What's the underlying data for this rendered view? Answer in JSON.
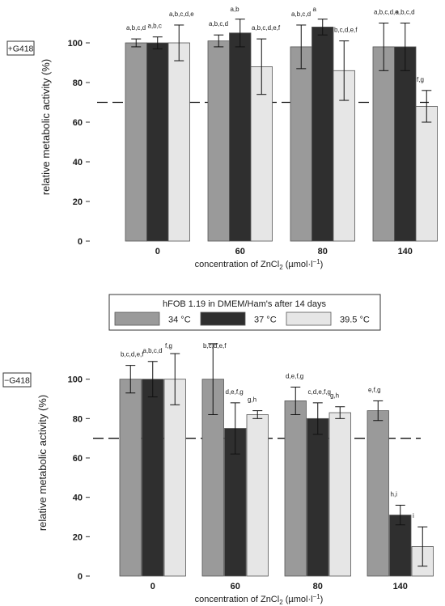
{
  "chart_data": [
    {
      "type": "bar",
      "panel_label": "+G418",
      "categories": [
        "0",
        "60",
        "80",
        "140"
      ],
      "ylabel": "relative metabolic activity (%)",
      "xlabel_parts": [
        "concentration of ZnCl",
        "2",
        " (µmol·l",
        "−1",
        ")"
      ],
      "ylim": [
        0,
        120
      ],
      "yticks": [
        0,
        20,
        40,
        60,
        80,
        100
      ],
      "reference_line": 70,
      "series": [
        {
          "name": "34 °C",
          "color": "#9a9a9a",
          "values": [
            100,
            101,
            98,
            98
          ],
          "errors": [
            2,
            3,
            11,
            12
          ],
          "labels": [
            "a,b,c,d",
            "a,b,c,d",
            "a,b,c,d",
            "a,b,c,d,e"
          ]
        },
        {
          "name": "37 °C",
          "color": "#2f2f2f",
          "values": [
            100,
            105,
            108,
            98
          ],
          "errors": [
            3,
            7,
            4,
            12
          ],
          "labels": [
            "a,b,c",
            "a,b",
            "a",
            "a,b,c,d"
          ]
        },
        {
          "name": "39.5 °C",
          "color": "#e6e6e6",
          "values": [
            100,
            88,
            86,
            68
          ],
          "errors": [
            9,
            14,
            15,
            8
          ],
          "labels": [
            "a,b,c,d,e",
            "a,b,c,d,e,f",
            "b,c,d,e,f",
            "f,g"
          ]
        }
      ]
    },
    {
      "type": "bar",
      "panel_label": "−G418",
      "categories": [
        "0",
        "60",
        "80",
        "140"
      ],
      "ylabel": "relative metabolic activity (%)",
      "xlabel_parts": [
        "concentration of ZnCl",
        "2",
        " (µmol·l",
        "−1",
        ")"
      ],
      "ylim": [
        0,
        120
      ],
      "yticks": [
        0,
        20,
        40,
        60,
        80,
        100
      ],
      "reference_line": 70,
      "series": [
        {
          "name": "34 °C",
          "color": "#9a9a9a",
          "values": [
            100,
            100,
            89,
            84
          ],
          "errors": [
            7,
            18,
            7,
            5
          ],
          "labels": [
            "b,c,d,e,f",
            "b,c,d,e,f",
            "d,e,f,g",
            "e,f,g"
          ]
        },
        {
          "name": "37 °C",
          "color": "#2f2f2f",
          "values": [
            100,
            75,
            80,
            31
          ],
          "errors": [
            9,
            13,
            8,
            5
          ],
          "labels": [
            "a,b,c,d",
            "d,e,f,g",
            "c,d,e,f,g",
            "h,i"
          ]
        },
        {
          "name": "39.5 °C",
          "color": "#e6e6e6",
          "values": [
            100,
            82,
            83,
            15
          ],
          "errors": [
            13,
            2,
            3,
            10
          ],
          "labels": [
            "f,g",
            "g,h",
            "g,h",
            "i"
          ]
        }
      ]
    }
  ],
  "legend": {
    "title": "hFOB 1.19 in DMEM/Ham's after 14 days",
    "entries": [
      {
        "name": "34 °C",
        "color": "#9a9a9a"
      },
      {
        "name": "37 °C",
        "color": "#2f2f2f"
      },
      {
        "name": "39.5 °C",
        "color": "#e6e6e6"
      }
    ]
  }
}
